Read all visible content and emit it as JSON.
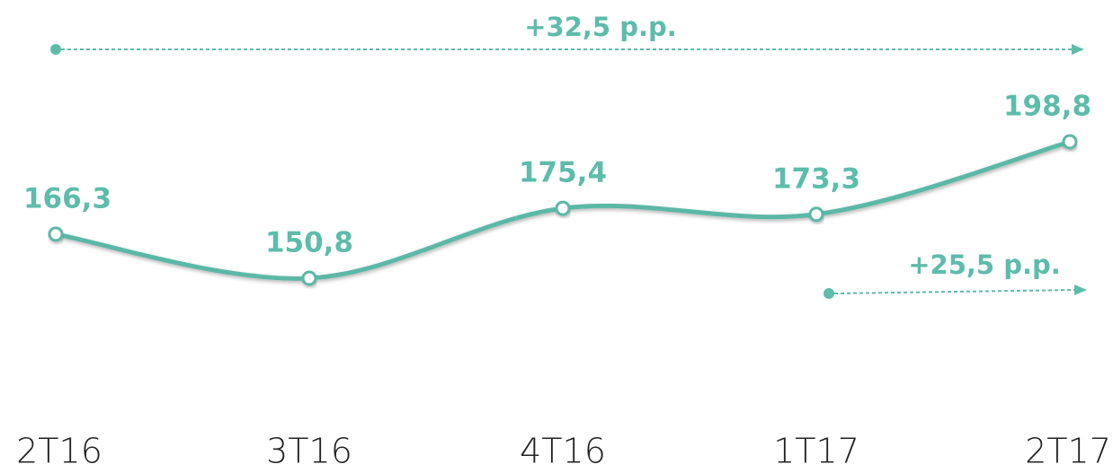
{
  "chart_data": {
    "type": "line",
    "categories": [
      "2T16",
      "3T16",
      "4T16",
      "1T17",
      "2T17"
    ],
    "values": [
      166.3,
      150.8,
      175.4,
      173.3,
      198.8
    ],
    "value_labels": [
      "166,3",
      "150,8",
      "175,4",
      "173,3",
      "198,8"
    ],
    "color": "#5cb8a6",
    "annotations": [
      "+32,5 p.p.",
      "+25,5 p.p."
    ]
  }
}
